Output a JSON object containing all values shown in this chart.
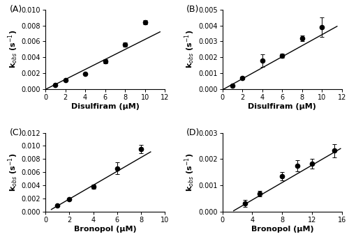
{
  "panels": [
    {
      "label": "(A)",
      "xlabel": "Disulfiram (μM)",
      "ylabel": "k$_{obs}$ (s$^{-1}$)",
      "xlim": [
        0,
        12
      ],
      "ylim": [
        0,
        0.01
      ],
      "xticks": [
        0,
        2,
        4,
        6,
        8,
        10,
        12
      ],
      "yticks": [
        0.0,
        0.002,
        0.004,
        0.006,
        0.008,
        0.01
      ],
      "ytick_labels": [
        "0.000",
        "0.002",
        "0.004",
        "0.006",
        "0.008",
        "0.010"
      ],
      "x": [
        1,
        2,
        4,
        6,
        8,
        10
      ],
      "y": [
        0.0005,
        0.0011,
        0.0019,
        0.0035,
        0.0056,
        0.0084
      ],
      "yerr": [
        5e-05,
        5e-05,
        5e-05,
        0.00025,
        0.00028,
        0.00025
      ],
      "fit_x": [
        0.0,
        11.5
      ],
      "fit_y": [
        -5e-05,
        0.0072
      ],
      "has_errbar": [
        false,
        false,
        false,
        true,
        true,
        true
      ]
    },
    {
      "label": "(B)",
      "xlabel": "Disulfiram (μM)",
      "ylabel": "k$_{obs}$ (s$^{-1}$)",
      "xlim": [
        0,
        12
      ],
      "ylim": [
        0,
        0.005
      ],
      "xticks": [
        0,
        2,
        4,
        6,
        8,
        10,
        12
      ],
      "yticks": [
        0.0,
        0.001,
        0.002,
        0.003,
        0.004,
        0.005
      ],
      "ytick_labels": [
        "0.000",
        "0.001",
        "0.002",
        "0.003",
        "0.004",
        "0.005"
      ],
      "x": [
        1,
        2,
        4,
        6,
        8,
        10
      ],
      "y": [
        0.00023,
        0.0007,
        0.00178,
        0.0021,
        0.00318,
        0.0039
      ],
      "yerr": [
        8e-05,
        8e-05,
        0.0004,
        0.00012,
        0.00018,
        0.0006
      ],
      "fit_x": [
        0.0,
        11.5
      ],
      "fit_y": [
        -5e-05,
        0.00395
      ],
      "has_errbar": [
        true,
        true,
        true,
        true,
        true,
        true
      ]
    },
    {
      "label": "(C)",
      "xlabel": "Bronopol (μM)",
      "ylabel": "k$_{obs}$ (s$^{-1}$)",
      "xlim": [
        0,
        10
      ],
      "ylim": [
        0,
        0.012
      ],
      "xticks": [
        0,
        2,
        4,
        6,
        8,
        10
      ],
      "yticks": [
        0.0,
        0.002,
        0.004,
        0.006,
        0.008,
        0.01,
        0.012
      ],
      "ytick_labels": [
        "0.000",
        "0.002",
        "0.004",
        "0.006",
        "0.008",
        "0.010",
        "0.012"
      ],
      "x": [
        1,
        2,
        4,
        6,
        8
      ],
      "y": [
        0.00095,
        0.00195,
        0.00385,
        0.0066,
        0.0095
      ],
      "yerr": [
        0.0001,
        0.0001,
        0.0003,
        0.0009,
        0.00065
      ],
      "fit_x": [
        0.5,
        8.8
      ],
      "fit_y": [
        0.0004,
        0.0091
      ],
      "has_errbar": [
        false,
        false,
        true,
        true,
        true
      ]
    },
    {
      "label": "(D)",
      "xlabel": "Bronopol (μM)",
      "ylabel": "k$_{obs}$ (s$^{-1}$)",
      "xlim": [
        0,
        16
      ],
      "ylim": [
        0,
        0.003
      ],
      "xticks": [
        0,
        4,
        8,
        12,
        16
      ],
      "yticks": [
        0.0,
        0.001,
        0.002,
        0.003
      ],
      "ytick_labels": [
        "0.000",
        "0.001",
        "0.002",
        "0.003"
      ],
      "x": [
        3,
        5,
        8,
        10,
        12,
        15
      ],
      "y": [
        0.00033,
        0.0007,
        0.00135,
        0.00175,
        0.00182,
        0.00232
      ],
      "yerr": [
        0.00012,
        0.0001,
        0.00015,
        0.0002,
        0.00018,
        0.00025
      ],
      "fit_x": [
        1.5,
        15.8
      ],
      "fit_y": [
        5e-05,
        0.0024
      ],
      "has_errbar": [
        true,
        true,
        true,
        true,
        true,
        true
      ]
    }
  ],
  "marker_color": "black",
  "line_color": "black",
  "marker_size": 4.5,
  "line_width": 1.0,
  "tick_font_size": 7,
  "axis_label_fontsize": 8,
  "panel_label_fontsize": 9,
  "fig_bg": "white"
}
